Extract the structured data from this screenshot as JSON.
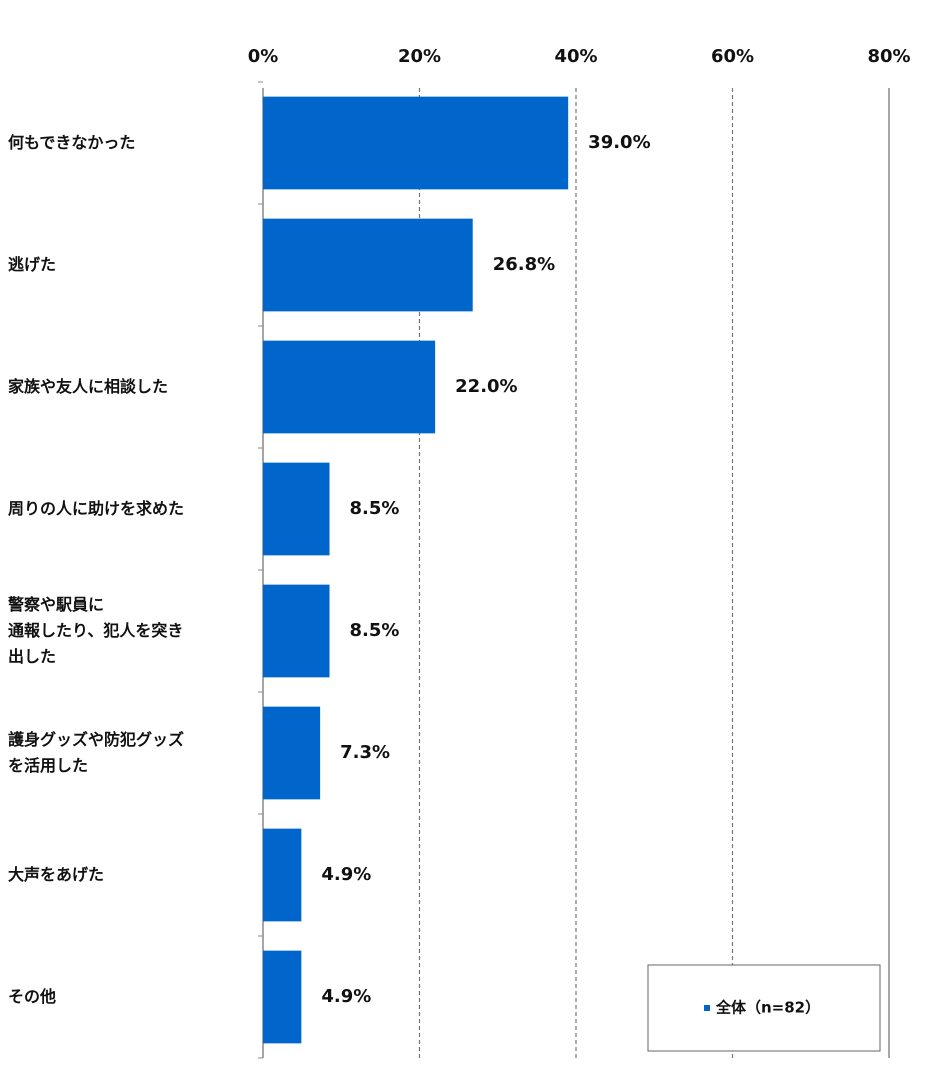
{
  "chart_data": {
    "type": "bar",
    "orientation": "horizontal",
    "categories": [
      "何もできなかった",
      "逃げた",
      "家族や友人に相談した",
      "周りの人に助けを求めた",
      "警察や駅員に\n通報したり、犯人を突き\n出した",
      "護身グッズや防犯グッズ\nを活用した",
      "大声をあげた",
      "その他"
    ],
    "series": [
      {
        "name": "全体（n=82）",
        "color": "#0066cc",
        "values": [
          39.0,
          26.8,
          22.0,
          8.5,
          8.5,
          7.3,
          4.9,
          4.9
        ],
        "value_labels": [
          "39.0%",
          "26.8%",
          "22.0%",
          "8.5%",
          "8.5%",
          "7.3%",
          "4.9%",
          "4.9%"
        ]
      }
    ],
    "xlim": [
      0,
      80
    ],
    "xticks": [
      {
        "value": 0,
        "label": "0%"
      },
      {
        "value": 20,
        "label": "20%"
      },
      {
        "value": 40,
        "label": "40%"
      },
      {
        "value": 60,
        "label": "60%"
      },
      {
        "value": 80,
        "label": "80%"
      }
    ],
    "grid": true,
    "legend": "lower right"
  }
}
